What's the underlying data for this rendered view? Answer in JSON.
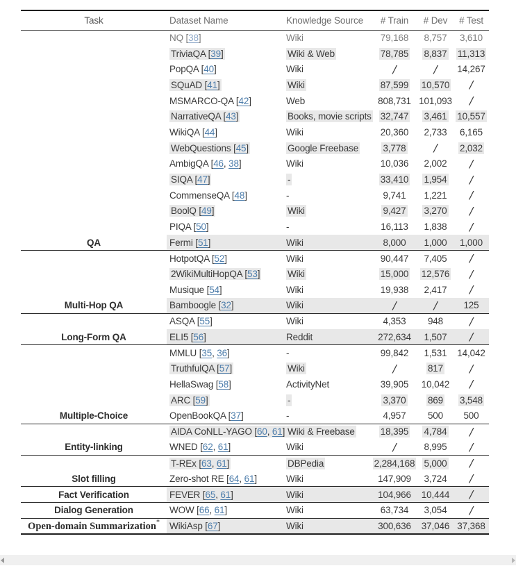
{
  "table": {
    "headers": [
      "Task",
      "Dataset Name",
      "Knowledge Source",
      "# Train",
      "# Dev",
      "# Test"
    ],
    "rows": [
      {
        "task": "",
        "dataset": "NQ",
        "cites": [
          "38"
        ],
        "source": "Wiki",
        "train": "79,168",
        "dev": "8,757",
        "test": "3,610",
        "shade": "none",
        "muted": true,
        "rule_below": false
      },
      {
        "task": "",
        "dataset": "TriviaQA",
        "cites": [
          "39"
        ],
        "source": "Wiki & Web",
        "train": "78,785",
        "dev": "8,837",
        "test": "11,313",
        "shade": "chips",
        "muted": false,
        "rule_below": false
      },
      {
        "task": "",
        "dataset": "PopQA",
        "cites": [
          "40"
        ],
        "source": "Wiki",
        "train": "/",
        "dev": "/",
        "test": "14,267",
        "shade": "none",
        "muted": false,
        "rule_below": false
      },
      {
        "task": "",
        "dataset": "SQuAD",
        "cites": [
          "41"
        ],
        "source": "Wiki",
        "train": "87,599",
        "dev": "10,570",
        "test": "/",
        "shade": "chips",
        "muted": false,
        "rule_below": false
      },
      {
        "task": "",
        "dataset": "MSMARCO-QA",
        "cites": [
          "42"
        ],
        "source": "Web",
        "train": "808,731",
        "dev": "101,093",
        "test": "/",
        "shade": "none",
        "muted": false,
        "rule_below": false
      },
      {
        "task": "",
        "dataset": "NarrativeQA",
        "cites": [
          "43"
        ],
        "source": "Books, movie scripts",
        "train": "32,747",
        "dev": "3,461",
        "test": "10,557",
        "shade": "chips",
        "muted": false,
        "rule_below": false
      },
      {
        "task": "",
        "dataset": "WikiQA",
        "cites": [
          "44"
        ],
        "source": "Wiki",
        "train": "20,360",
        "dev": "2,733",
        "test": "6,165",
        "shade": "none",
        "muted": false,
        "rule_below": false
      },
      {
        "task": "",
        "dataset": "WebQuestions",
        "cites": [
          "45"
        ],
        "source": "Google Freebase",
        "train": "3,778",
        "dev": "/",
        "test": "2,032",
        "shade": "chips",
        "muted": false,
        "rule_below": false
      },
      {
        "task": "",
        "dataset": "AmbigQA",
        "cites": [
          "46",
          "38"
        ],
        "source": "Wiki",
        "train": "10,036",
        "dev": "2,002",
        "test": "/",
        "shade": "none",
        "muted": false,
        "rule_below": false
      },
      {
        "task": "",
        "dataset": "SIQA",
        "cites": [
          "47"
        ],
        "source": "-",
        "train": "33,410",
        "dev": "1,954",
        "test": "/",
        "shade": "chips",
        "muted": false,
        "rule_below": false
      },
      {
        "task": "",
        "dataset": "CommenseQA",
        "cites": [
          "48"
        ],
        "source": "-",
        "train": "9,741",
        "dev": "1,221",
        "test": "/",
        "shade": "none",
        "muted": false,
        "rule_below": false
      },
      {
        "task": "",
        "dataset": "BoolQ",
        "cites": [
          "49"
        ],
        "source": "Wiki",
        "train": "9,427",
        "dev": "3,270",
        "test": "/",
        "shade": "chips",
        "muted": false,
        "rule_below": false
      },
      {
        "task": "",
        "dataset": "PIQA",
        "cites": [
          "50"
        ],
        "source": "-",
        "train": "16,113",
        "dev": "1,838",
        "test": "/",
        "shade": "none",
        "muted": false,
        "rule_below": false
      },
      {
        "task": "QA",
        "dataset": "Fermi",
        "cites": [
          "51"
        ],
        "source": "Wiki",
        "train": "8,000",
        "dev": "1,000",
        "test": "1,000",
        "shade": "band",
        "muted": false,
        "rule_below": true
      },
      {
        "task": "",
        "dataset": "HotpotQA",
        "cites": [
          "52"
        ],
        "source": "Wiki",
        "train": "90,447",
        "dev": "7,405",
        "test": "/",
        "shade": "none",
        "muted": false,
        "rule_below": false
      },
      {
        "task": "",
        "dataset": "2WikiMultiHopQA",
        "cites": [
          "53"
        ],
        "source": "Wiki",
        "train": "15,000",
        "dev": "12,576",
        "test": "/",
        "shade": "chips",
        "muted": false,
        "rule_below": false
      },
      {
        "task": "",
        "dataset": "Musique",
        "cites": [
          "54"
        ],
        "source": "Wiki",
        "train": "19,938",
        "dev": "2,417",
        "test": "/",
        "shade": "none",
        "muted": false,
        "rule_below": false
      },
      {
        "task": "Multi-Hop QA",
        "dataset": "Bamboogle",
        "cites": [
          "32"
        ],
        "source": "Wiki",
        "train": "/",
        "dev": "/",
        "test": "125",
        "shade": "band",
        "muted": false,
        "rule_below": true
      },
      {
        "task": "",
        "dataset": "ASQA",
        "cites": [
          "55"
        ],
        "source": "Wiki",
        "train": "4,353",
        "dev": "948",
        "test": "/",
        "shade": "none",
        "muted": false,
        "rule_below": false
      },
      {
        "task": "Long-Form QA",
        "dataset": "ELI5",
        "cites": [
          "56"
        ],
        "source": "Reddit",
        "train": "272,634",
        "dev": "1,507",
        "test": "/",
        "shade": "band",
        "muted": false,
        "rule_below": true
      },
      {
        "task": "",
        "dataset": "MMLU",
        "cites": [
          "35",
          "36"
        ],
        "source": "-",
        "train": "99,842",
        "dev": "1,531",
        "test": "14,042",
        "shade": "none",
        "muted": false,
        "rule_below": false
      },
      {
        "task": "",
        "dataset": "TruthfulQA",
        "cites": [
          "57"
        ],
        "source": "Wiki",
        "train": "/",
        "dev": "817",
        "test": "/",
        "shade": "chips",
        "muted": false,
        "rule_below": false
      },
      {
        "task": "",
        "dataset": "HellaSwag",
        "cites": [
          "58"
        ],
        "source": "ActivityNet",
        "train": "39,905",
        "dev": "10,042",
        "test": "/",
        "shade": "none",
        "muted": false,
        "rule_below": false
      },
      {
        "task": "",
        "dataset": "ARC",
        "cites": [
          "59"
        ],
        "source": "-",
        "train": "3,370",
        "dev": "869",
        "test": "3,548",
        "shade": "chips",
        "muted": false,
        "rule_below": false
      },
      {
        "task": "Multiple-Choice",
        "dataset": "OpenBookQA",
        "cites": [
          "37"
        ],
        "source": "-",
        "train": "4,957",
        "dev": "500",
        "test": "500",
        "shade": "none",
        "muted": false,
        "rule_below": true
      },
      {
        "task": "",
        "dataset": "AIDA CoNLL-YAGO",
        "cites": [
          "60",
          "61"
        ],
        "source": "Wiki & Freebase",
        "train": "18,395",
        "dev": "4,784",
        "test": "/",
        "shade": "chips",
        "muted": false,
        "rule_below": false
      },
      {
        "task": "Entity-linking",
        "dataset": "WNED",
        "cites": [
          "62",
          "61"
        ],
        "source": "Wiki",
        "train": "/",
        "dev": "8,995",
        "test": "/",
        "shade": "none",
        "muted": false,
        "rule_below": true
      },
      {
        "task": "",
        "dataset": "T-REx",
        "cites": [
          "63",
          "61"
        ],
        "source": "DBPedia",
        "train": "2,284,168",
        "dev": "5,000",
        "test": "/",
        "shade": "chips",
        "muted": false,
        "rule_below": false
      },
      {
        "task": "Slot filling",
        "dataset": "Zero-shot RE",
        "cites": [
          "64",
          "61"
        ],
        "source": "Wiki",
        "train": "147,909",
        "dev": "3,724",
        "test": "/",
        "shade": "none",
        "muted": false,
        "rule_below": true
      },
      {
        "task": "Fact Verification",
        "dataset": "FEVER",
        "cites": [
          "65",
          "61"
        ],
        "source": "Wiki",
        "train": "104,966",
        "dev": "10,444",
        "test": "/",
        "shade": "band",
        "muted": false,
        "rule_below": true
      },
      {
        "task": "Dialog Generation",
        "dataset": "WOW",
        "cites": [
          "66",
          "61"
        ],
        "source": "Wiki",
        "train": "63,734",
        "dev": "3,054",
        "test": "/",
        "shade": "none",
        "muted": false,
        "rule_below": true
      },
      {
        "task": "Open-domain Summarization",
        "task_serif": true,
        "sup": "*",
        "dataset": "WikiAsp",
        "cites": [
          "67"
        ],
        "source": "Wiki",
        "train": "300,636",
        "dev": "37,046",
        "test": "37,368",
        "shade": "band",
        "muted": false,
        "rule_below": false
      }
    ]
  },
  "colors": {
    "row_shade": "#e8e8e8",
    "citation_link": "#4d7dab",
    "body_text": "#3a3a3a",
    "rule": "#1f1f1f",
    "scrollbar_track": "#f0f0f0"
  },
  "scrollbar": {
    "left_icon": "scroll-left-arrow",
    "right_icon": "scroll-right-arrow"
  }
}
